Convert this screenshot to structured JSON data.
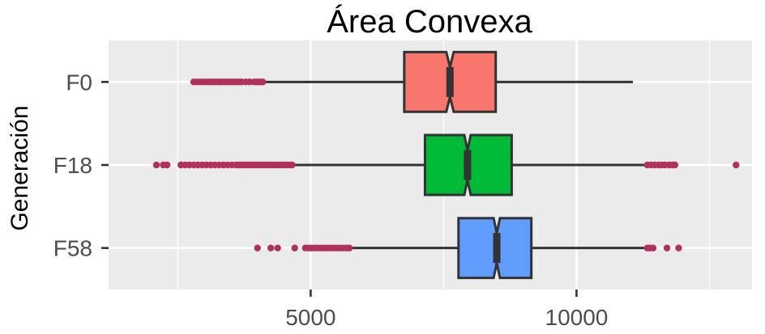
{
  "chart_data": {
    "type": "boxplot",
    "title": "Área Convexa",
    "xlabel": "",
    "ylabel": "Generación",
    "xlim": [
      1200,
      13300
    ],
    "x_ticks": [
      5000,
      10000
    ],
    "x_tick_labels": [
      "5000",
      "10000"
    ],
    "x_minor": [
      2500,
      7500,
      12500
    ],
    "categories": [
      "F0",
      "F18",
      "F58"
    ],
    "grid": true,
    "notched": true,
    "colors": {
      "panel_bg": "#ebebeb",
      "grid": "#ffffff",
      "outlier": "#b03060",
      "outline": "#333333",
      "tick_text": "#4d4d4d"
    },
    "series": [
      {
        "category": "F0",
        "color": "#F8766D",
        "min": 4130,
        "q1": 6760,
        "median": 7620,
        "q3": 8480,
        "max": 11060,
        "notch": [
          7550,
          7690
        ],
        "outliers": [
          2800,
          2860,
          2920,
          2980,
          3040,
          3100,
          3150,
          3200,
          3260,
          3310,
          3360,
          3400,
          3450,
          3500,
          3550,
          3600,
          3650,
          3700,
          3780,
          3850,
          3930,
          3980,
          4020,
          4060,
          4100
        ]
      },
      {
        "category": "F18",
        "color": "#00BA38",
        "min": 4700,
        "q1": 7150,
        "median": 7950,
        "q3": 8780,
        "max": 11300,
        "notch": [
          7890,
          8010
        ],
        "outliers": [
          2100,
          2230,
          2300,
          2560,
          2640,
          2720,
          2800,
          2880,
          2960,
          3040,
          3120,
          3200,
          3280,
          3360,
          3440,
          3520,
          3600,
          3650,
          3700,
          3750,
          3800,
          3850,
          3900,
          3950,
          4000,
          4050,
          4100,
          4150,
          4200,
          4250,
          4300,
          4350,
          4400,
          4450,
          4500,
          4550,
          4600,
          4650,
          11330,
          11400,
          11470,
          11540,
          11600,
          11660,
          11740,
          11800,
          11850,
          13000
        ]
      },
      {
        "category": "F58",
        "color": "#619CFF",
        "min": 5750,
        "q1": 7780,
        "median": 8500,
        "q3": 9150,
        "max": 11280,
        "notch": [
          8440,
          8560
        ],
        "outliers": [
          4000,
          4250,
          4380,
          4700,
          4900,
          4960,
          5020,
          5080,
          5140,
          5200,
          5260,
          5320,
          5380,
          5440,
          5500,
          5560,
          5620,
          5680,
          5730,
          11330,
          11380,
          11440,
          11700,
          11920
        ]
      }
    ]
  }
}
